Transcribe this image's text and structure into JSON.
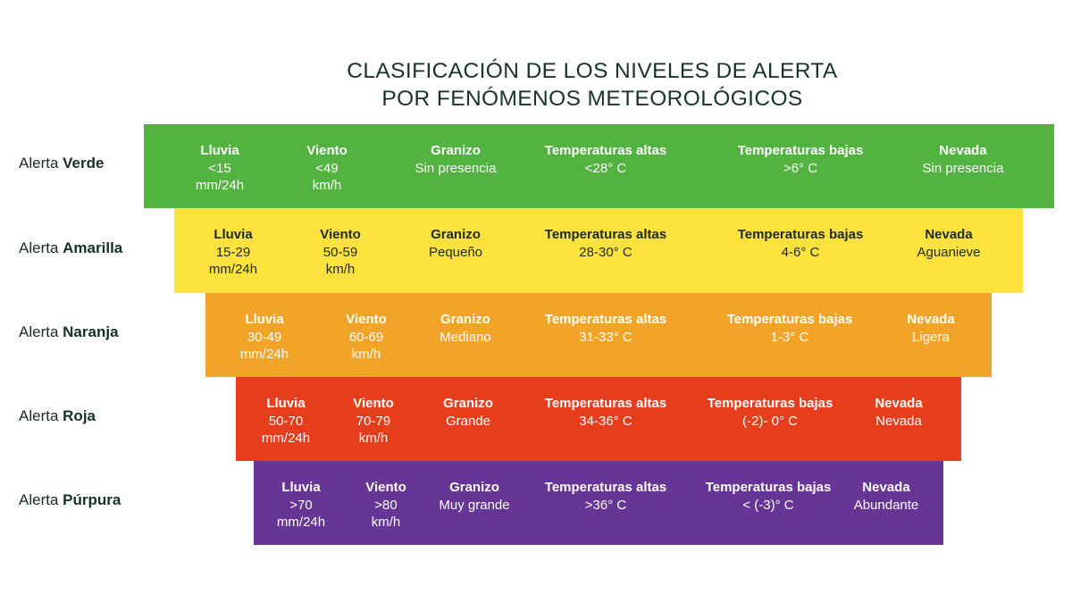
{
  "title": {
    "line1": "CLASIFICACIÓN DE LOS NIVELES DE ALERTA",
    "line2": "POR FENÓMENOS METEOROLÓGICOS"
  },
  "headers": {
    "lluvia": "Lluvia",
    "viento": "Viento",
    "granizo": "Granizo",
    "temp_altas": "Temperaturas altas",
    "temp_bajas": "Temperaturas bajas",
    "nevada": "Nevada"
  },
  "levels": [
    {
      "prefix": "Alerta",
      "name": "Verde",
      "color": "#52b340",
      "text_color": "#ffffff",
      "lluvia_value": "<15",
      "lluvia_unit": "mm/24h",
      "viento_value": "<49",
      "viento_unit": "km/h",
      "granizo": "Sin presencia",
      "temp_altas": "<28° C",
      "temp_bajas": ">6° C",
      "nevada": "Sin presencia"
    },
    {
      "prefix": "Alerta",
      "name": "Amarilla",
      "color": "#fde23e",
      "text_color": "#1c2a20",
      "lluvia_value": "15-29",
      "lluvia_unit": "mm/24h",
      "viento_value": "50-59",
      "viento_unit": "km/h",
      "granizo": "Pequeño",
      "temp_altas": "28-30° C",
      "temp_bajas": "4-6° C",
      "nevada": "Aguanieve"
    },
    {
      "prefix": "Alerta",
      "name": "Naranja",
      "color": "#f2a428",
      "text_color": "#ffffff",
      "lluvia_value": "30-49",
      "lluvia_unit": "mm/24h",
      "viento_value": "60-69",
      "viento_unit": "km/h",
      "granizo": "Mediano",
      "temp_altas": "31-33° C",
      "temp_bajas": "1-3° C",
      "nevada": "Ligera"
    },
    {
      "prefix": "Alerta",
      "name": "Roja",
      "color": "#e63e1c",
      "text_color": "#ffffff",
      "lluvia_value": "50-70",
      "lluvia_unit": "mm/24h",
      "viento_value": "70-79",
      "viento_unit": "km/h",
      "granizo": "Grande",
      "temp_altas": "34-36° C",
      "temp_bajas": "(-2)- 0° C",
      "nevada": "Nevada"
    },
    {
      "prefix": "Alerta",
      "name": "Púrpura",
      "color": "#663595",
      "text_color": "#ffffff",
      "lluvia_value": ">70",
      "lluvia_unit": "mm/24h",
      "viento_value": ">80",
      "viento_unit": "km/h",
      "granizo": "Muy grande",
      "temp_altas": ">36° C",
      "temp_bajas": "< (-3)° C",
      "nevada": "Abundante"
    }
  ]
}
